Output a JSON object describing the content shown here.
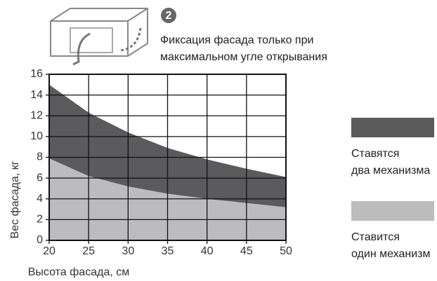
{
  "chart_data": {
    "type": "area",
    "step": "2",
    "annotation": "Фиксация фасада только при\nмаксимальном угле открывания",
    "x_label": "Высота фасада, см",
    "y_label": "Вес фасада, кг",
    "x": [
      20,
      25,
      30,
      35,
      40,
      45,
      50
    ],
    "series": [
      {
        "name": "Ставятся\nдва механизма",
        "color": "#5b5b5d",
        "values": [
          15.0,
          12.3,
          10.4,
          8.9,
          7.8,
          6.9,
          6.1
        ]
      },
      {
        "name": "Ставится\nодин механизм",
        "color": "#bcbcbe",
        "values": [
          7.9,
          6.2,
          5.2,
          4.5,
          4.0,
          3.6,
          3.2
        ]
      }
    ],
    "xlim": [
      20,
      50
    ],
    "xticks": [
      20,
      25,
      30,
      35,
      40,
      45,
      50
    ],
    "ylim": [
      0,
      16
    ],
    "yticks": [
      0,
      2,
      4,
      6,
      8,
      10,
      12,
      14,
      16
    ],
    "grid": true
  }
}
